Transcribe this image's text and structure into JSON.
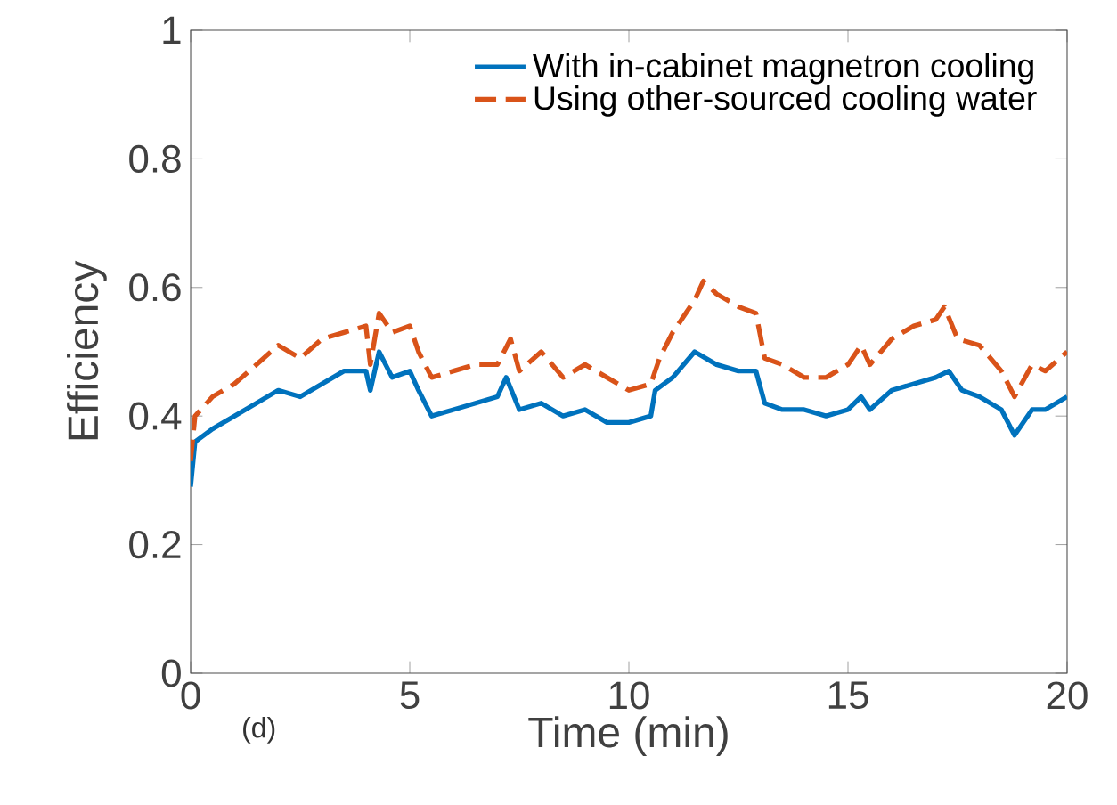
{
  "chart_data": {
    "type": "line",
    "xlabel": "Time (min)",
    "ylabel": "Efficiency",
    "xlim": [
      0,
      20
    ],
    "ylim": [
      0,
      1
    ],
    "xticks": [
      0,
      5,
      10,
      15,
      20
    ],
    "yticks": [
      0,
      0.2,
      0.4,
      0.6,
      0.8,
      1
    ],
    "legend": "top right",
    "grid": false,
    "annotations": [
      "(d)"
    ],
    "series": [
      {
        "name": "With in-cabinet magnetron cooling",
        "color": "#0072bd",
        "line_style": "solid",
        "x": [
          0,
          0.1,
          0.5,
          1,
          1.5,
          2,
          2.5,
          3,
          3.5,
          4,
          4.1,
          4.3,
          4.6,
          5,
          5.2,
          5.5,
          6,
          6.5,
          7,
          7.2,
          7.5,
          8,
          8.5,
          9,
          9.5,
          10,
          10.5,
          10.6,
          11,
          11.5,
          12,
          12.5,
          12.9,
          13.1,
          13.5,
          14,
          14.5,
          15,
          15.3,
          15.5,
          16,
          16.5,
          17,
          17.3,
          17.6,
          18,
          18.5,
          18.8,
          19.2,
          19.5,
          20
        ],
        "values": [
          0.29,
          0.36,
          0.38,
          0.4,
          0.42,
          0.44,
          0.43,
          0.45,
          0.47,
          0.47,
          0.44,
          0.5,
          0.46,
          0.47,
          0.44,
          0.4,
          0.41,
          0.42,
          0.43,
          0.46,
          0.41,
          0.42,
          0.4,
          0.41,
          0.39,
          0.39,
          0.4,
          0.44,
          0.46,
          0.5,
          0.48,
          0.47,
          0.47,
          0.42,
          0.41,
          0.41,
          0.4,
          0.41,
          0.43,
          0.41,
          0.44,
          0.45,
          0.46,
          0.47,
          0.44,
          0.43,
          0.41,
          0.37,
          0.41,
          0.41,
          0.43
        ]
      },
      {
        "name": "Using other-sourced cooling water",
        "color": "#d95319",
        "line_style": "dashed",
        "x": [
          0,
          0.1,
          0.5,
          1,
          1.5,
          2,
          2.5,
          3,
          3.5,
          4,
          4.1,
          4.3,
          4.6,
          5,
          5.2,
          5.5,
          6,
          6.5,
          7,
          7.3,
          7.5,
          8,
          8.5,
          9,
          9.5,
          10,
          10.5,
          10.7,
          11,
          11.5,
          11.7,
          12,
          12.5,
          12.9,
          13.1,
          13.5,
          14,
          14.5,
          15,
          15.3,
          15.5,
          16,
          16.5,
          17,
          17.2,
          17.5,
          18,
          18.5,
          18.8,
          19.2,
          19.5,
          20
        ],
        "values": [
          0.33,
          0.4,
          0.43,
          0.45,
          0.48,
          0.51,
          0.49,
          0.52,
          0.53,
          0.54,
          0.48,
          0.56,
          0.53,
          0.54,
          0.5,
          0.46,
          0.47,
          0.48,
          0.48,
          0.52,
          0.47,
          0.5,
          0.46,
          0.48,
          0.46,
          0.44,
          0.45,
          0.49,
          0.53,
          0.58,
          0.61,
          0.59,
          0.57,
          0.56,
          0.49,
          0.48,
          0.46,
          0.46,
          0.48,
          0.51,
          0.48,
          0.52,
          0.54,
          0.55,
          0.57,
          0.52,
          0.51,
          0.47,
          0.43,
          0.48,
          0.47,
          0.5
        ]
      }
    ]
  }
}
